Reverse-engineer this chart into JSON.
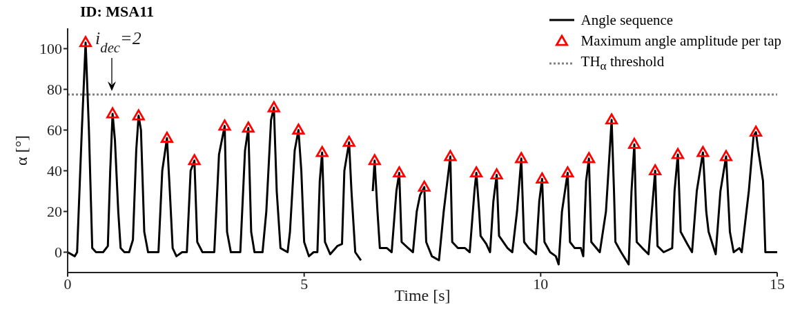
{
  "chart_data": {
    "type": "line",
    "title": "ID: MSA11",
    "xlabel": "Time [s]",
    "ylabel": "α [°]",
    "xlim": [
      0,
      15
    ],
    "xticks": [
      0,
      5,
      10,
      15
    ],
    "ylim": [
      -10,
      110
    ],
    "yticks": [
      0,
      20,
      40,
      60,
      80,
      100
    ],
    "grid": false,
    "legend": "top right",
    "annotations": [
      "i$_{dec}$=2"
    ],
    "ref_lines": [
      {
        "axis": "y",
        "value": 77.5,
        "label": "TH$_{α}$ threshold",
        "color": "#808080",
        "line_style": "dotted"
      }
    ],
    "series": [
      {
        "name": "Angle sequence",
        "color": "#000000",
        "marker": "none",
        "line_style": "solid",
        "x": [
          0,
          0.15,
          0.2,
          0.3,
          0.38,
          0.45,
          0.52,
          0.6,
          0.75,
          0.85,
          0.9,
          0.95,
          1.0,
          1.07,
          1.12,
          1.2,
          1.3,
          1.38,
          1.45,
          1.5,
          1.55,
          1.62,
          1.7,
          1.8,
          1.92,
          2.0,
          2.1,
          2.16,
          2.22,
          2.3,
          2.42,
          2.52,
          2.6,
          2.68,
          2.74,
          2.85,
          3.0,
          3.1,
          3.2,
          3.32,
          3.37,
          3.45,
          3.6,
          3.65,
          3.75,
          3.82,
          3.88,
          3.95,
          4.12,
          4.2,
          4.3,
          4.36,
          4.42,
          4.5,
          4.65,
          4.7,
          4.8,
          4.88,
          4.94,
          5.0,
          5.1,
          5.2,
          5.28,
          5.33,
          5.38,
          5.44,
          5.55,
          5.7,
          5.8,
          5.85,
          5.95,
          6.0,
          6.08,
          6.2,
          6.28,
          6.38,
          6.45,
          6.49,
          6.55,
          6.6,
          6.75,
          6.85,
          6.95,
          7.01,
          7.06,
          7.2,
          7.3,
          7.38,
          7.45,
          7.54,
          7.58,
          7.7,
          7.85,
          7.95,
          8.09,
          8.13,
          8.25,
          8.4,
          8.5,
          8.6,
          8.64,
          8.7,
          8.73,
          8.85,
          8.93,
          9.0,
          9.07,
          9.12,
          9.3,
          9.4,
          9.5,
          9.59,
          9.65,
          9.75,
          9.9,
          9.97,
          10.03,
          10.08,
          10.2,
          10.32,
          10.38,
          10.45,
          10.57,
          10.62,
          10.72,
          10.85,
          10.9,
          10.96,
          11.02,
          11.07,
          11.25,
          11.38,
          11.5,
          11.55,
          11.58,
          11.7,
          11.86,
          11.92,
          11.98,
          12.03,
          12.15,
          12.28,
          12.35,
          12.42,
          12.47,
          12.6,
          12.78,
          12.83,
          12.9,
          12.96,
          13.1,
          13.2,
          13.3,
          13.43,
          13.5,
          13.55,
          13.7,
          13.8,
          13.92,
          14.0,
          14.08,
          14.2,
          14.25,
          14.4,
          14.5,
          14.55,
          14.6,
          14.7,
          14.75,
          14.9,
          15.0
        ],
        "values": [
          0,
          -2,
          0,
          60,
          103,
          60,
          2,
          0,
          0,
          3,
          40,
          68,
          55,
          20,
          2,
          0,
          0,
          6,
          50,
          67,
          60,
          10,
          0,
          0,
          0,
          40,
          56,
          30,
          2,
          -2,
          0,
          0,
          40,
          45,
          5,
          0,
          0,
          0,
          48,
          62,
          10,
          0,
          0,
          0,
          50,
          61,
          10,
          0,
          0,
          20,
          65,
          71,
          30,
          2,
          0,
          10,
          50,
          60,
          40,
          5,
          -2,
          0,
          0,
          35,
          49,
          5,
          -1,
          3,
          4,
          40,
          54,
          30,
          0,
          -4,
          null,
          null,
          30,
          45,
          20,
          2,
          2,
          0,
          30,
          39,
          5,
          2,
          0,
          20,
          28,
          32,
          5,
          -2,
          -4,
          20,
          47,
          5,
          2,
          2,
          0,
          30,
          39,
          20,
          8,
          4,
          0,
          25,
          38,
          8,
          2,
          0,
          20,
          46,
          5,
          2,
          -1,
          25,
          36,
          5,
          0,
          -2,
          -6,
          20,
          39,
          5,
          2,
          2,
          -2,
          35,
          46,
          5,
          0,
          20,
          65,
          30,
          5,
          0,
          -6,
          30,
          53,
          5,
          2,
          -1,
          20,
          40,
          3,
          0,
          2,
          30,
          48,
          10,
          4,
          0,
          30,
          49,
          20,
          10,
          -1,
          30,
          47,
          10,
          0,
          2,
          0,
          30,
          57,
          59,
          50,
          35,
          0,
          0,
          0
        ]
      },
      {
        "name": "Maximum angle amplitude per tap",
        "type": "scatter",
        "color": "#ff0000",
        "marker": "triangle",
        "x": [
          0.38,
          0.95,
          1.5,
          2.1,
          2.68,
          3.32,
          3.82,
          4.36,
          4.88,
          5.38,
          5.95,
          6.49,
          7.01,
          7.54,
          8.09,
          8.64,
          9.07,
          9.59,
          10.03,
          10.57,
          11.02,
          11.5,
          11.98,
          12.42,
          12.9,
          13.43,
          13.92,
          14.55
        ],
        "values": [
          103,
          68,
          67,
          56,
          45,
          62,
          61,
          71,
          60,
          49,
          54,
          45,
          39,
          32,
          47,
          39,
          38,
          46,
          36,
          39,
          46,
          65,
          53,
          40,
          48,
          49,
          47,
          59
        ]
      }
    ]
  }
}
